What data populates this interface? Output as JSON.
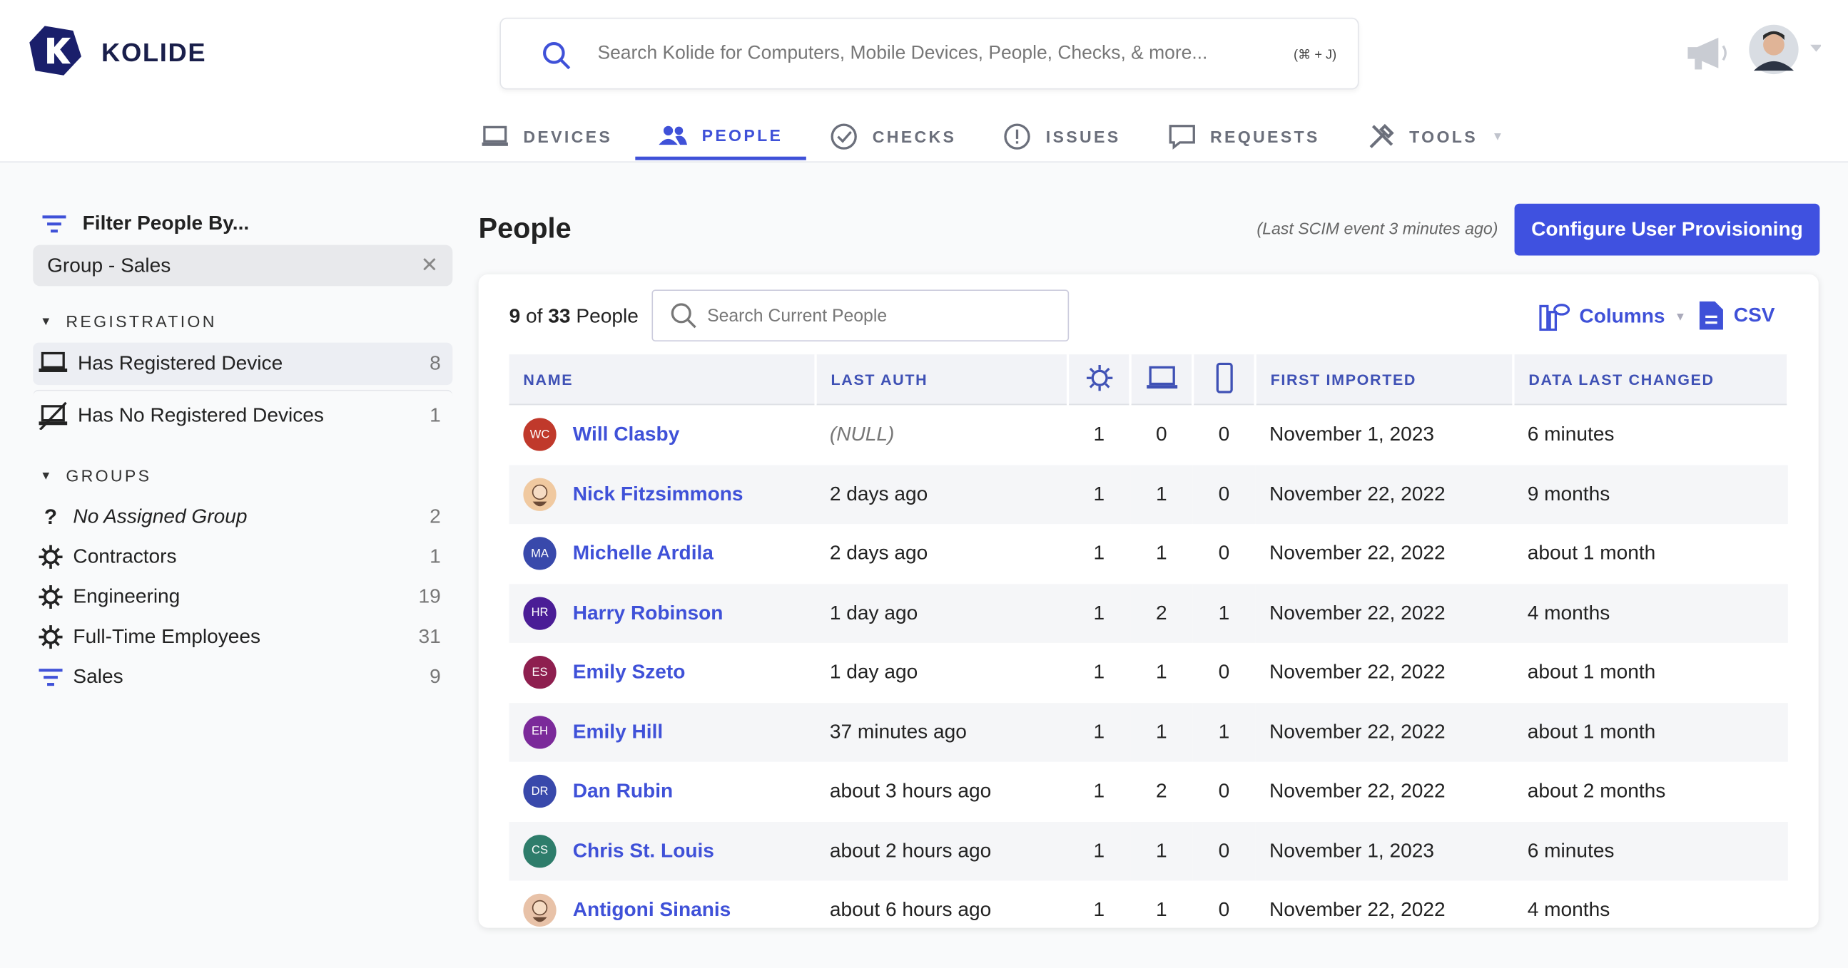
{
  "header": {
    "brand": "KOLIDE",
    "search_placeholder": "Search Kolide for Computers, Mobile Devices, People, Checks, & more...",
    "shortcut": "(⌘ + J)"
  },
  "nav": [
    {
      "label": "DEVICES",
      "active": false
    },
    {
      "label": "PEOPLE",
      "active": true
    },
    {
      "label": "CHECKS",
      "active": false
    },
    {
      "label": "ISSUES",
      "active": false
    },
    {
      "label": "REQUESTS",
      "active": false
    },
    {
      "label": "TOOLS",
      "active": false
    }
  ],
  "sidebar": {
    "title": "Filter People By...",
    "active_filter": "Group - Sales",
    "sections": [
      {
        "title": "REGISTRATION",
        "items": [
          {
            "label": "Has Registered Device",
            "count": 8,
            "selected": true
          },
          {
            "label": "Has No Registered Devices",
            "count": 1,
            "selected": false
          }
        ]
      },
      {
        "title": "GROUPS",
        "items": [
          {
            "label": "No Assigned Group",
            "count": 2,
            "selected": false
          },
          {
            "label": "Contractors",
            "count": 1,
            "selected": false
          },
          {
            "label": "Engineering",
            "count": 19,
            "selected": false
          },
          {
            "label": "Full-Time Employees",
            "count": 31,
            "selected": false
          },
          {
            "label": "Sales",
            "count": 9,
            "selected": false
          }
        ]
      }
    ]
  },
  "main": {
    "title": "People",
    "scim_note": "(Last SCIM event 3 minutes ago)",
    "button": "Configure User Provisioning",
    "count_shown": 9,
    "count_of": "of",
    "count_total": 33,
    "count_unit": "People",
    "search_placeholder": "Search Current People",
    "columns_button": "Columns",
    "csv_button": "CSV"
  },
  "table": {
    "headers": {
      "name": "NAME",
      "last_auth": "LAST AUTH",
      "first_imported": "FIRST IMPORTED",
      "data_changed": "DATA LAST CHANGED"
    },
    "rows": [
      {
        "initials": "WC",
        "color": "#c0392b",
        "name": "Will Clasby",
        "last_auth": "(NULL)",
        "checks": 1,
        "devices": 0,
        "mobile": 0,
        "first_imported": "November 1, 2023",
        "data_changed": "6 minutes"
      },
      {
        "color": "#f0c9a0",
        "name": "Nick Fitzsimmons",
        "last_auth": "2 days ago",
        "checks": 1,
        "devices": 1,
        "mobile": 0,
        "first_imported": "November 22, 2022",
        "data_changed": "9 months"
      },
      {
        "initials": "MA",
        "color": "#3949ab",
        "name": "Michelle Ardila",
        "last_auth": "2 days ago",
        "checks": 1,
        "devices": 1,
        "mobile": 0,
        "first_imported": "November 22, 2022",
        "data_changed": "about 1 month"
      },
      {
        "initials": "HR",
        "color": "#4a1d96",
        "name": "Harry Robinson",
        "last_auth": "1 day ago",
        "checks": 1,
        "devices": 2,
        "mobile": 1,
        "first_imported": "November 22, 2022",
        "data_changed": "4 months"
      },
      {
        "initials": "ES",
        "color": "#8e1f4f",
        "name": "Emily Szeto",
        "last_auth": "1 day ago",
        "checks": 1,
        "devices": 1,
        "mobile": 0,
        "first_imported": "November 22, 2022",
        "data_changed": "about 1 month"
      },
      {
        "initials": "EH",
        "color": "#7b2a9a",
        "name": "Emily Hill",
        "last_auth": "37 minutes ago",
        "checks": 1,
        "devices": 1,
        "mobile": 1,
        "first_imported": "November 22, 2022",
        "data_changed": "about 1 month"
      },
      {
        "initials": "DR",
        "color": "#3949ab",
        "name": "Dan Rubin",
        "last_auth": "about 3 hours ago",
        "checks": 1,
        "devices": 2,
        "mobile": 0,
        "first_imported": "November 22, 2022",
        "data_changed": "about 2 months"
      },
      {
        "initials": "CS",
        "color": "#2e7d6b",
        "name": "Chris St. Louis",
        "last_auth": "about 2 hours ago",
        "checks": 1,
        "devices": 1,
        "mobile": 0,
        "first_imported": "November 1, 2023",
        "data_changed": "6 minutes"
      },
      {
        "color": "#e8c2a8",
        "name": "Antigoni Sinanis",
        "last_auth": "about 6 hours ago",
        "checks": 1,
        "devices": 1,
        "mobile": 0,
        "first_imported": "November 22, 2022",
        "data_changed": "4 months"
      }
    ]
  }
}
